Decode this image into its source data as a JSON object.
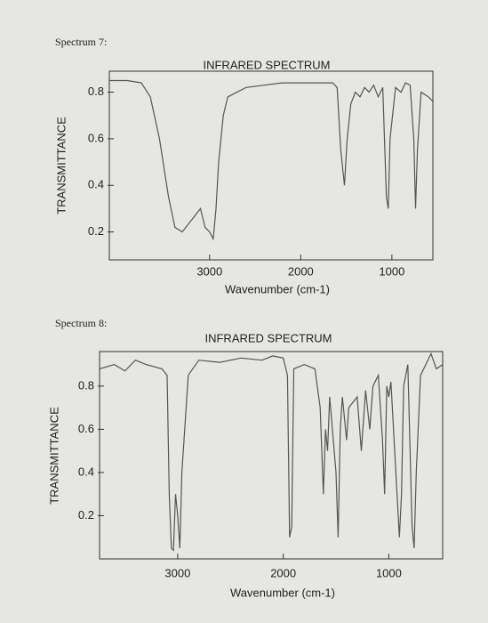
{
  "chart_data": [
    {
      "type": "line",
      "caption": "Spectrum 7:",
      "title": "INFRARED SPECTRUM",
      "xlabel": "Wavenumber (cm-1)",
      "ylabel": "TRANSMITTANCE",
      "xlim": [
        4100,
        550
      ],
      "xticks": [
        3000,
        2000,
        1000
      ],
      "ylim": [
        0.08,
        0.89
      ],
      "yticks": [
        0.8,
        0.6,
        0.4,
        0.2
      ],
      "color": "#555555",
      "x": [
        4100,
        3900,
        3750,
        3650,
        3550,
        3450,
        3380,
        3300,
        3200,
        3100,
        3050,
        3000,
        2960,
        2930,
        2900,
        2850,
        2800,
        2600,
        2400,
        2200,
        2000,
        1800,
        1650,
        1600,
        1560,
        1520,
        1490,
        1450,
        1400,
        1350,
        1300,
        1250,
        1200,
        1150,
        1100,
        1060,
        1040,
        1020,
        960,
        900,
        850,
        800,
        760,
        740,
        720,
        680,
        600,
        550
      ],
      "values": [
        0.85,
        0.85,
        0.84,
        0.78,
        0.6,
        0.35,
        0.22,
        0.2,
        0.25,
        0.3,
        0.22,
        0.2,
        0.17,
        0.3,
        0.5,
        0.7,
        0.78,
        0.82,
        0.83,
        0.84,
        0.84,
        0.84,
        0.84,
        0.82,
        0.55,
        0.4,
        0.6,
        0.75,
        0.8,
        0.78,
        0.82,
        0.8,
        0.83,
        0.78,
        0.82,
        0.35,
        0.3,
        0.6,
        0.82,
        0.8,
        0.84,
        0.83,
        0.6,
        0.3,
        0.55,
        0.8,
        0.78,
        0.76
      ]
    },
    {
      "type": "line",
      "caption": "Spectrum 8:",
      "title": "INFRARED SPECTRUM",
      "xlabel": "Wavenumber (cm-1)",
      "ylabel": "TRANSMITTANCE",
      "xlim": [
        3740,
        490
      ],
      "xticks": [
        3000,
        2000,
        1000
      ],
      "ylim": [
        0,
        0.96
      ],
      "yticks": [
        0.8,
        0.6,
        0.4,
        0.2
      ],
      "color": "#555555",
      "x": [
        3740,
        3600,
        3500,
        3400,
        3300,
        3150,
        3100,
        3080,
        3060,
        3040,
        3020,
        3000,
        2980,
        2960,
        2900,
        2800,
        2600,
        2400,
        2200,
        2100,
        2000,
        1960,
        1940,
        1920,
        1900,
        1800,
        1700,
        1650,
        1620,
        1600,
        1580,
        1560,
        1500,
        1480,
        1460,
        1440,
        1400,
        1380,
        1300,
        1260,
        1220,
        1180,
        1150,
        1100,
        1060,
        1040,
        1020,
        1000,
        980,
        900,
        880,
        860,
        820,
        780,
        760,
        740,
        700,
        650,
        600,
        550,
        490
      ],
      "values": [
        0.88,
        0.9,
        0.87,
        0.92,
        0.9,
        0.88,
        0.85,
        0.3,
        0.05,
        0.04,
        0.3,
        0.2,
        0.05,
        0.4,
        0.85,
        0.92,
        0.91,
        0.93,
        0.92,
        0.94,
        0.93,
        0.85,
        0.1,
        0.15,
        0.88,
        0.9,
        0.88,
        0.7,
        0.3,
        0.6,
        0.5,
        0.75,
        0.4,
        0.1,
        0.6,
        0.75,
        0.55,
        0.7,
        0.75,
        0.5,
        0.78,
        0.6,
        0.8,
        0.85,
        0.55,
        0.3,
        0.8,
        0.75,
        0.82,
        0.1,
        0.3,
        0.8,
        0.9,
        0.15,
        0.05,
        0.4,
        0.85,
        0.9,
        0.95,
        0.88,
        0.9
      ]
    }
  ]
}
